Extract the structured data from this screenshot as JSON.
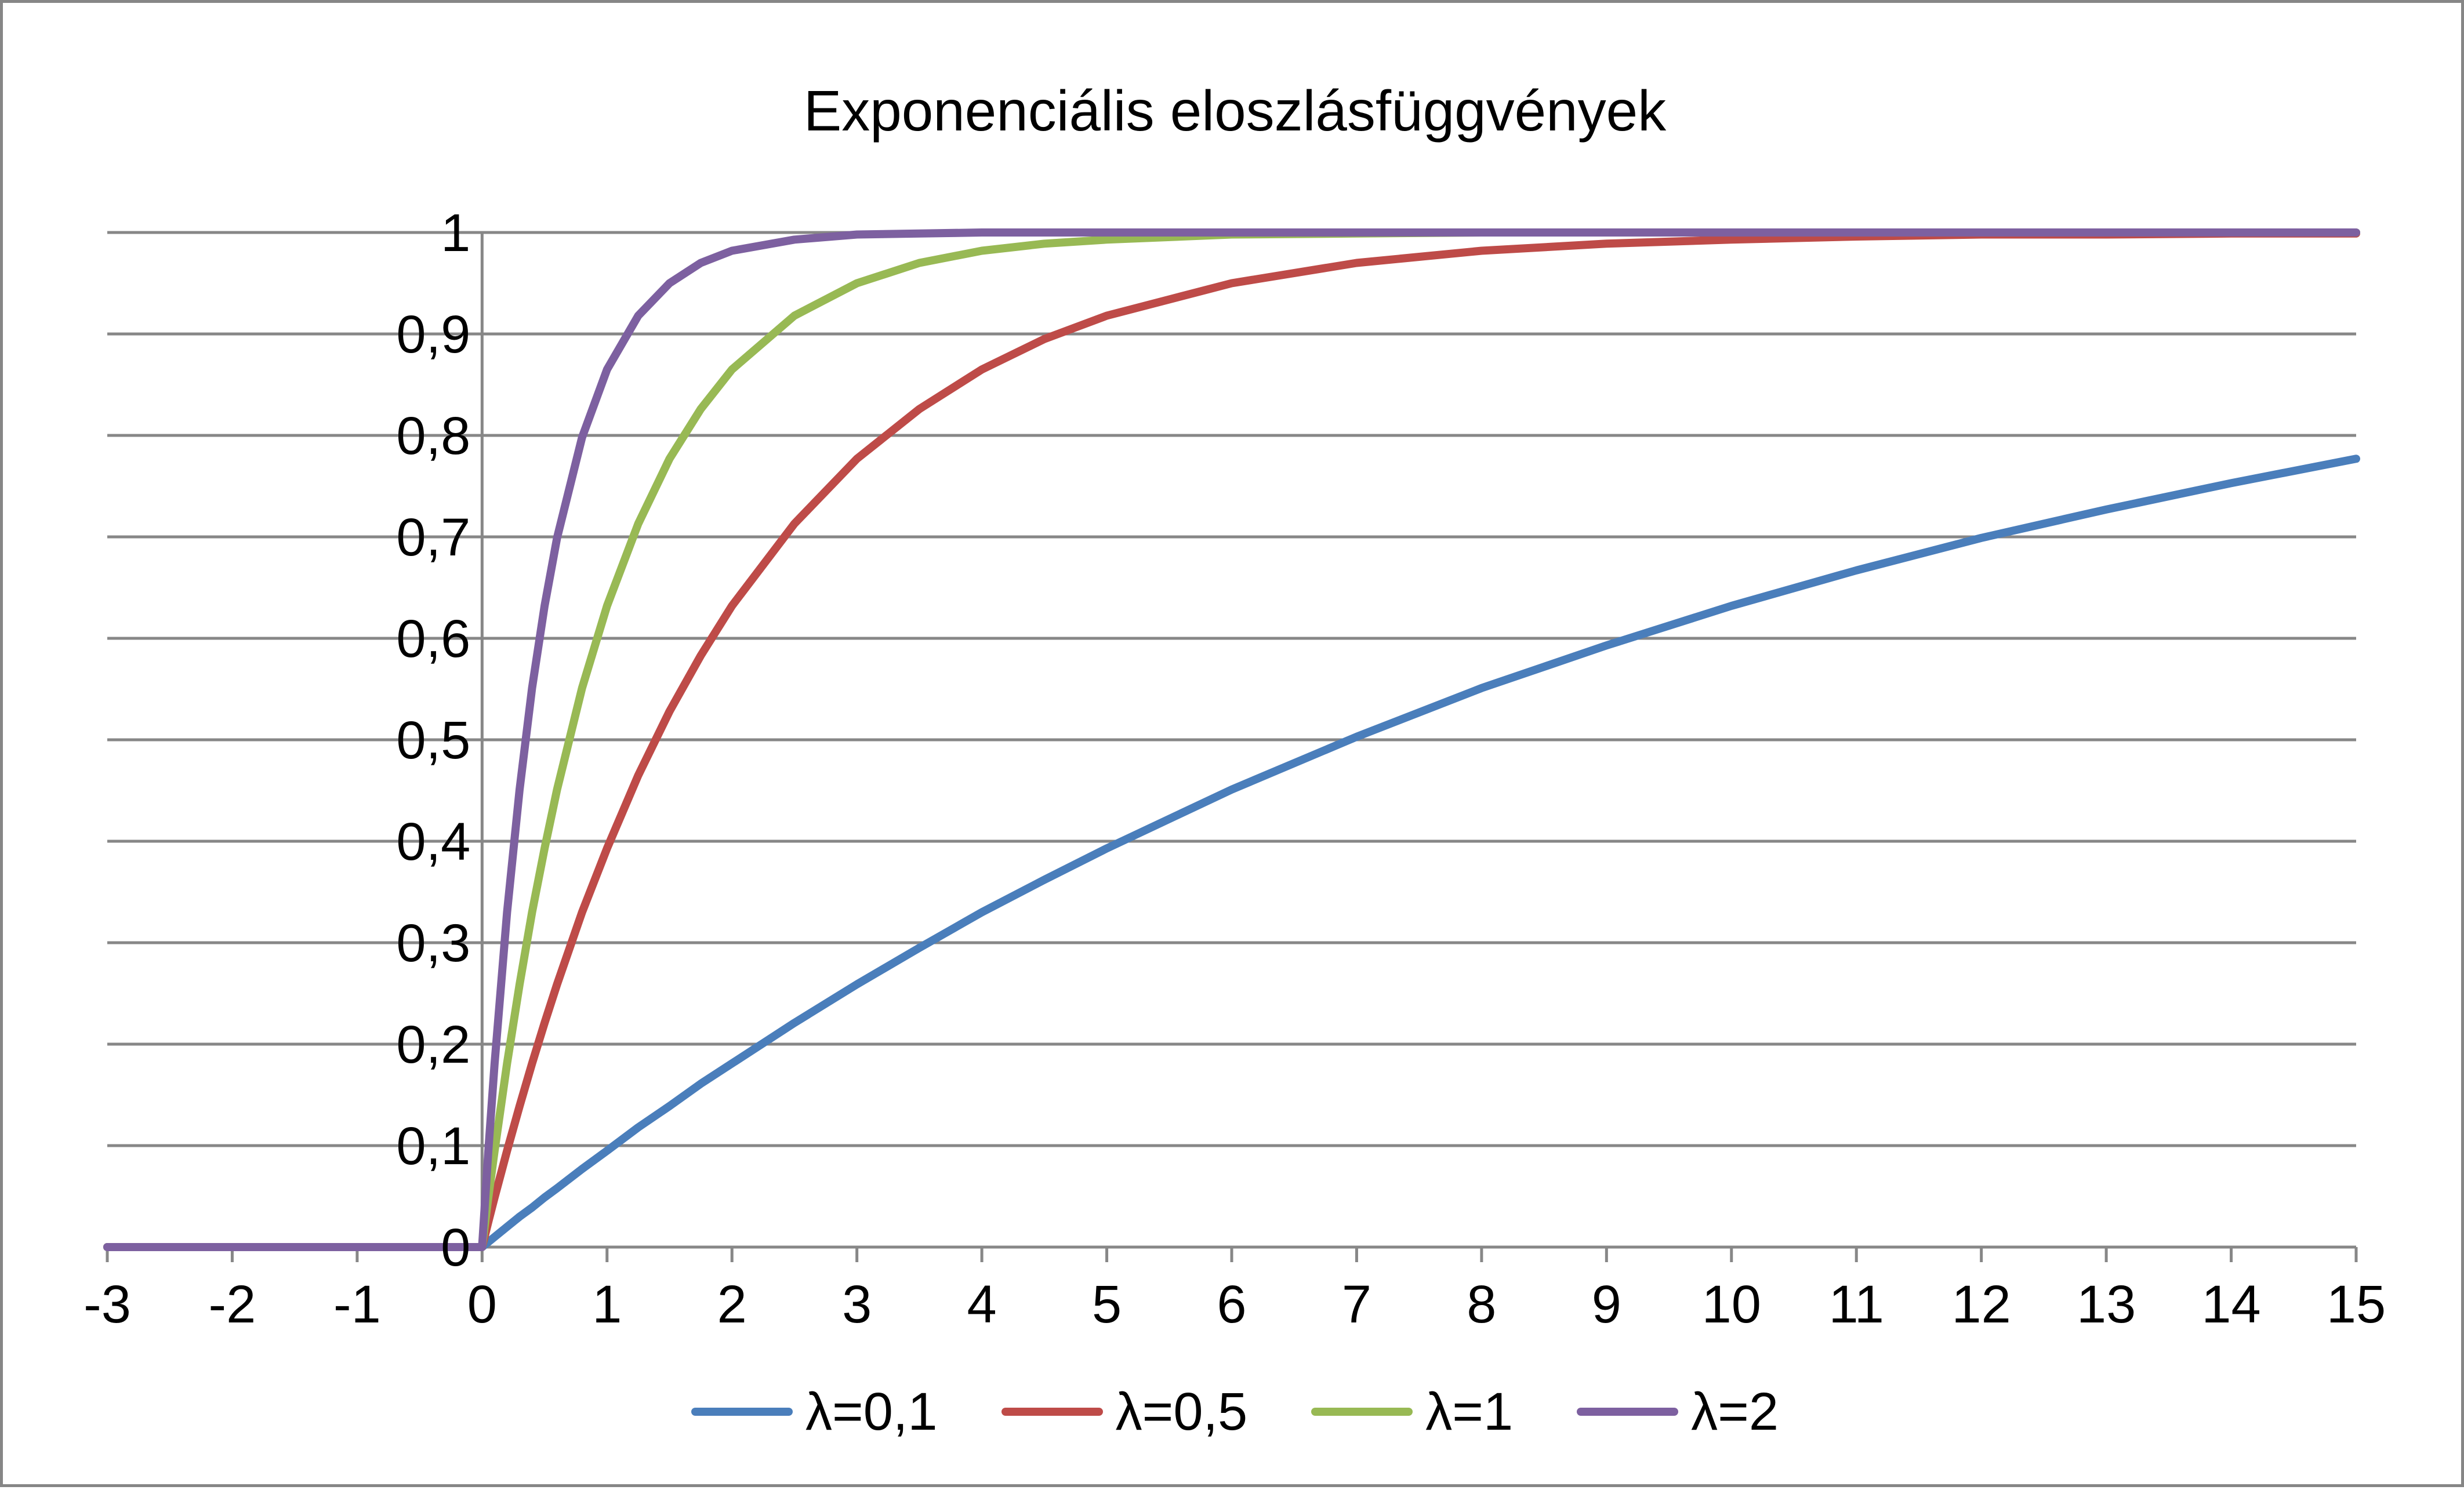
{
  "chart_data": {
    "type": "line",
    "title": "Exponenciális eloszlásfüggvények",
    "xlabel": "",
    "ylabel": "",
    "xlim": [
      -3,
      15
    ],
    "ylim": [
      0,
      1
    ],
    "x_ticks": [
      "-3",
      "-2",
      "-1",
      "0",
      "1",
      "2",
      "3",
      "4",
      "5",
      "6",
      "7",
      "8",
      "9",
      "10",
      "11",
      "12",
      "13",
      "14",
      "15"
    ],
    "y_ticks": [
      "0",
      "0,1",
      "0,2",
      "0,3",
      "0,4",
      "0,5",
      "0,6",
      "0,7",
      "0,8",
      "0,9",
      "1"
    ],
    "grid": "horizontal",
    "legend_position": "bottom",
    "x": [
      -3,
      -2,
      -1,
      0,
      0.05,
      0.1,
      0.2,
      0.3,
      0.4,
      0.5,
      0.6,
      0.8,
      1,
      1.25,
      1.5,
      1.75,
      2,
      2.5,
      3,
      3.5,
      4,
      4.5,
      5,
      6,
      7,
      8,
      9,
      10,
      11,
      12,
      13,
      14,
      15
    ],
    "series": [
      {
        "name": "λ=0,1",
        "color": "#4A7EBB",
        "values": [
          0,
          0,
          0,
          0,
          0.005,
          0.01,
          0.02,
          0.03,
          0.039,
          0.049,
          0.058,
          0.077,
          0.095,
          0.118,
          0.139,
          0.161,
          0.181,
          0.221,
          0.259,
          0.295,
          0.33,
          0.362,
          0.393,
          0.451,
          0.503,
          0.551,
          0.593,
          0.632,
          0.667,
          0.699,
          0.727,
          0.753,
          0.777
        ]
      },
      {
        "name": "λ=0,5",
        "color": "#BE4B48",
        "values": [
          0,
          0,
          0,
          0,
          0.025,
          0.049,
          0.095,
          0.139,
          0.181,
          0.221,
          0.259,
          0.33,
          0.393,
          0.465,
          0.528,
          0.583,
          0.632,
          0.713,
          0.777,
          0.826,
          0.865,
          0.895,
          0.918,
          0.95,
          0.97,
          0.982,
          0.989,
          0.993,
          0.996,
          0.998,
          0.998,
          0.999,
          0.999
        ]
      },
      {
        "name": "λ=1",
        "color": "#98B954",
        "values": [
          0,
          0,
          0,
          0,
          0.049,
          0.095,
          0.181,
          0.259,
          0.33,
          0.393,
          0.451,
          0.551,
          0.632,
          0.713,
          0.777,
          0.826,
          0.865,
          0.918,
          0.95,
          0.97,
          0.982,
          0.989,
          0.993,
          0.998,
          0.999,
          1,
          1,
          1,
          1,
          1,
          1,
          1,
          1
        ]
      },
      {
        "name": "λ=2",
        "color": "#7D60A0",
        "values": [
          0,
          0,
          0,
          0,
          0.095,
          0.181,
          0.33,
          0.451,
          0.551,
          0.632,
          0.699,
          0.798,
          0.865,
          0.918,
          0.95,
          0.97,
          0.982,
          0.993,
          0.998,
          0.999,
          1,
          1,
          1,
          1,
          1,
          1,
          1,
          1,
          1,
          1,
          1,
          1,
          1
        ]
      }
    ]
  }
}
